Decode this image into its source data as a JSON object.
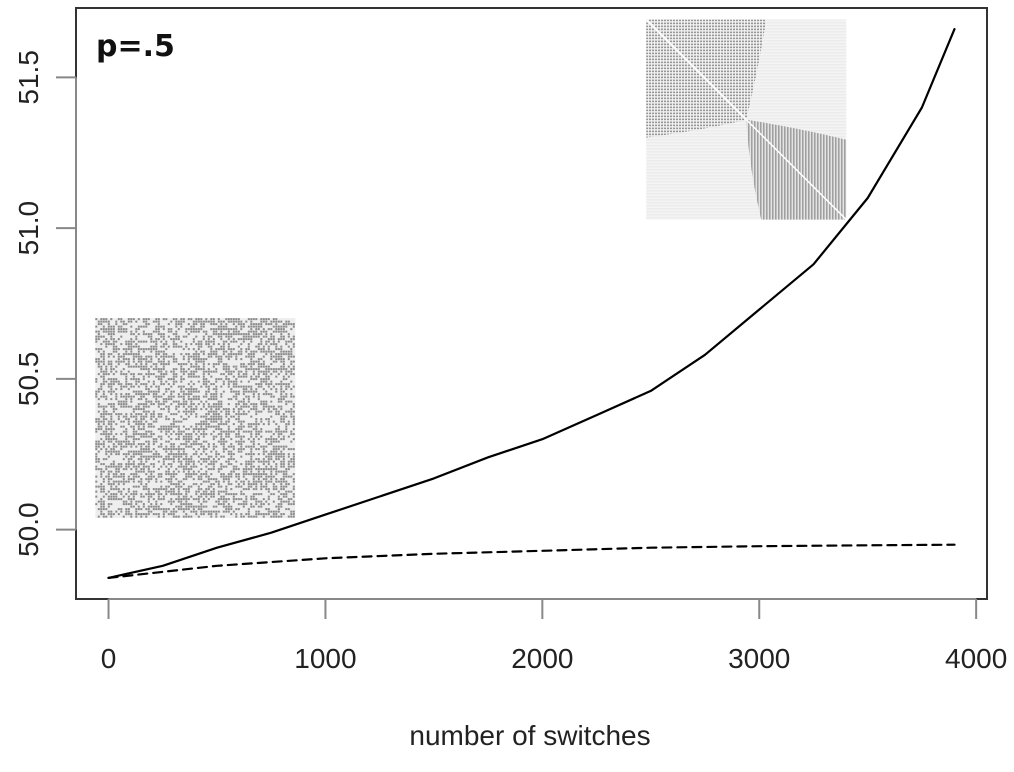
{
  "chart_data": {
    "type": "line",
    "title": "",
    "xlabel": "number of switches",
    "ylabel": "",
    "annotation": "p=.5",
    "xlim": [
      -150,
      4050
    ],
    "ylim": [
      49.77,
      51.73
    ],
    "x_ticks": [
      0,
      1000,
      2000,
      3000,
      4000
    ],
    "y_ticks": [
      50.0,
      50.5,
      51.0,
      51.5
    ],
    "x_tick_labels": [
      "0",
      "1000",
      "2000",
      "3000",
      "4000"
    ],
    "y_tick_labels": [
      "50.0",
      "50.5",
      "51.0",
      "51.5"
    ],
    "grid": false,
    "legend": "none",
    "series": [
      {
        "style": "solid",
        "color": "#000000",
        "x": [
          0,
          250,
          500,
          750,
          1000,
          1250,
          1500,
          1750,
          2000,
          2250,
          2500,
          2750,
          3000,
          3250,
          3500,
          3750,
          3900
        ],
        "y": [
          49.84,
          49.88,
          49.94,
          49.99,
          50.05,
          50.11,
          50.17,
          50.24,
          50.3,
          50.38,
          50.46,
          50.58,
          50.73,
          50.88,
          51.1,
          51.4,
          51.66
        ]
      },
      {
        "style": "dashed",
        "color": "#000000",
        "x": [
          0,
          500,
          1000,
          1500,
          2000,
          2500,
          3000,
          3500,
          3900
        ],
        "y": [
          49.84,
          49.88,
          49.905,
          49.92,
          49.93,
          49.94,
          49.945,
          49.948,
          49.95
        ]
      }
    ],
    "insets": [
      {
        "name": "random-lattice",
        "pattern": "random",
        "color": "#8a8a8a",
        "x_center": 400,
        "y_center": 50.37
      },
      {
        "name": "ordered-lattice",
        "pattern": "quadrant",
        "color": "#8a8a8a",
        "x_center": 2940,
        "y_center": 51.36
      }
    ]
  }
}
